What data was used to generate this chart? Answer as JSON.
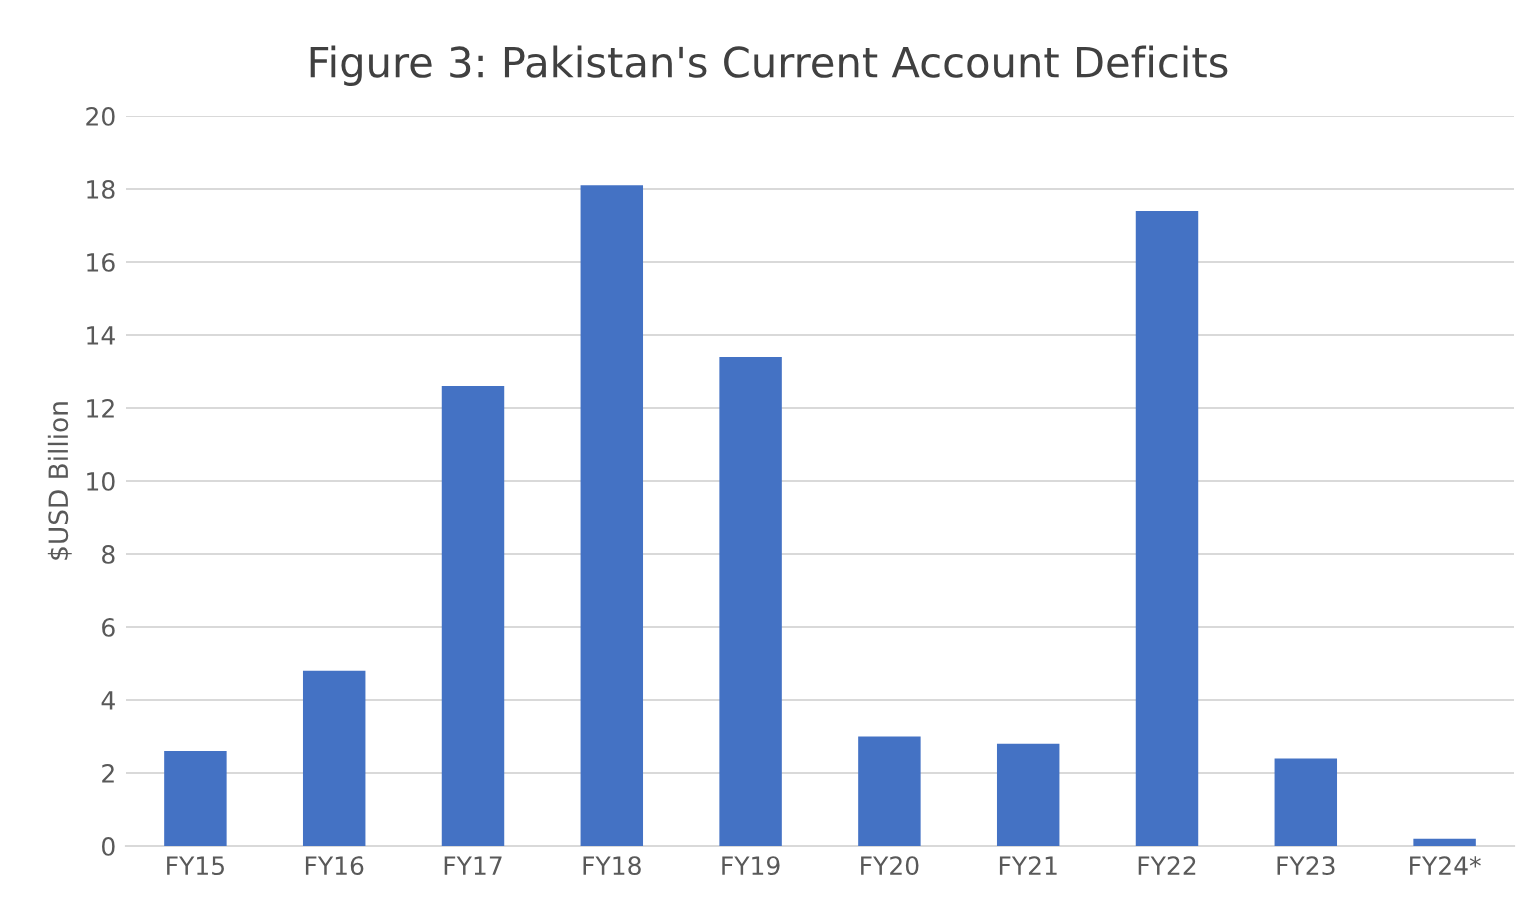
{
  "chart_data": {
    "type": "bar",
    "title": "Figure 3: Pakistan's Current Account Deficits",
    "ylabel": "$USD Billion",
    "categories": [
      "FY15",
      "FY16",
      "FY17",
      "FY18",
      "FY19",
      "FY20",
      "FY21",
      "FY22",
      "FY23",
      "FY24*"
    ],
    "values": [
      2.6,
      4.8,
      12.6,
      18.1,
      13.4,
      3.0,
      2.8,
      17.4,
      2.4,
      0.2
    ],
    "color": "#4472c4",
    "ylim": [
      0,
      20
    ],
    "yticks": [
      0,
      2,
      4,
      6,
      8,
      10,
      12,
      14,
      16,
      18,
      20
    ],
    "grid": "y",
    "legend": false
  }
}
